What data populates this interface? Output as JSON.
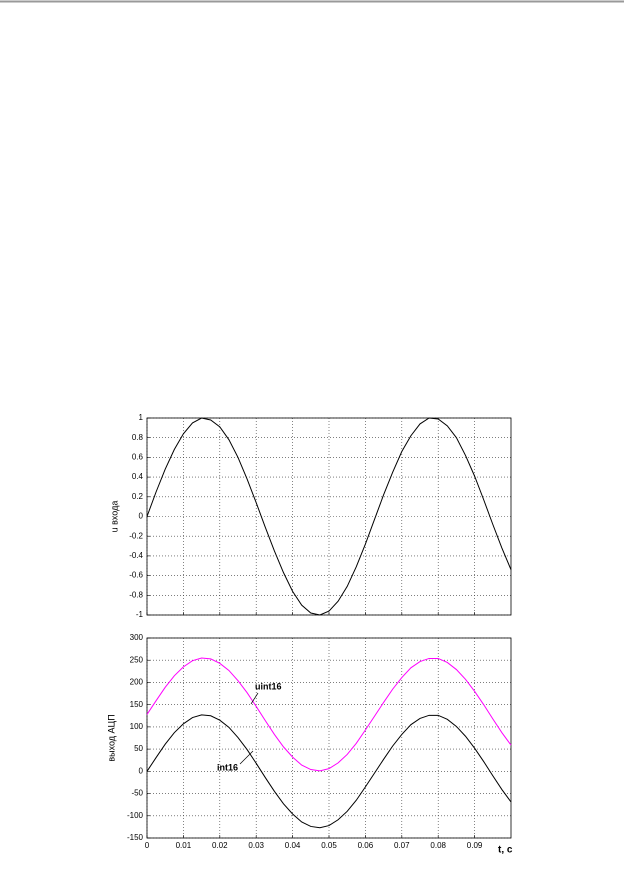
{
  "chart_data": [
    {
      "type": "line",
      "ylabel": "u входа",
      "x": [
        0,
        0.0025,
        0.005,
        0.0075,
        0.01,
        0.0125,
        0.015,
        0.0175,
        0.02,
        0.0225,
        0.025,
        0.0275,
        0.03,
        0.0325,
        0.035,
        0.0375,
        0.04,
        0.0425,
        0.045,
        0.0475,
        0.05,
        0.0525,
        0.055,
        0.0575,
        0.06,
        0.0625,
        0.065,
        0.0675,
        0.07,
        0.0725,
        0.075,
        0.0775,
        0.08,
        0.0825,
        0.085,
        0.0875,
        0.09,
        0.0925,
        0.095,
        0.0975,
        0.1
      ],
      "series": [
        {
          "color": "#000000",
          "values": [
            0,
            0.25,
            0.48,
            0.68,
            0.84,
            0.95,
            1,
            0.98,
            0.91,
            0.78,
            0.6,
            0.38,
            0.14,
            -0.11,
            -0.35,
            -0.57,
            -0.76,
            -0.9,
            -0.98,
            -1,
            -0.96,
            -0.86,
            -0.71,
            -0.51,
            -0.28,
            -0.03,
            0.22,
            0.45,
            0.66,
            0.82,
            0.94,
            1,
            0.99,
            0.92,
            0.8,
            0.62,
            0.41,
            0.17,
            -0.08,
            -0.32,
            -0.54
          ]
        }
      ],
      "xlim": [
        0,
        0.1
      ],
      "xticks": [
        0,
        0.01,
        0.02,
        0.03,
        0.04,
        0.05,
        0.06,
        0.07,
        0.08,
        0.09
      ],
      "ylim": [
        -1,
        1
      ],
      "yticks": [
        -1,
        -0.8,
        -0.6,
        -0.4,
        -0.2,
        0,
        0.2,
        0.4,
        0.6,
        0.8,
        1
      ],
      "grid": true
    },
    {
      "type": "line",
      "ylabel": "выход АЦП",
      "xlabel": "t, c",
      "x": [
        0,
        0.0025,
        0.005,
        0.0075,
        0.01,
        0.0125,
        0.015,
        0.0175,
        0.02,
        0.0225,
        0.025,
        0.0275,
        0.03,
        0.0325,
        0.035,
        0.0375,
        0.04,
        0.0425,
        0.045,
        0.0475,
        0.05,
        0.0525,
        0.055,
        0.0575,
        0.06,
        0.0625,
        0.065,
        0.0675,
        0.07,
        0.0725,
        0.075,
        0.0775,
        0.08,
        0.0825,
        0.085,
        0.0875,
        0.09,
        0.0925,
        0.095,
        0.0975,
        0.1
      ],
      "series": [
        {
          "name": "uint16",
          "color": "#ff00ff",
          "values": [
            128,
            159,
            189,
            215,
            235,
            249,
            255,
            253,
            243,
            227,
            204,
            177,
            146,
            114,
            83,
            55,
            32,
            14,
            4,
            1,
            6,
            19,
            38,
            63,
            93,
            124,
            155,
            185,
            211,
            233,
            247,
            254,
            254,
            245,
            229,
            207,
            180,
            150,
            118,
            87,
            59
          ]
        },
        {
          "name": "int16",
          "color": "#000000",
          "values": [
            0,
            31,
            61,
            87,
            107,
            121,
            127,
            125,
            115,
            99,
            76,
            49,
            18,
            -14,
            -45,
            -73,
            -96,
            -114,
            -124,
            -127,
            -122,
            -109,
            -90,
            -65,
            -35,
            -4,
            27,
            57,
            83,
            105,
            119,
            126,
            126,
            117,
            101,
            79,
            52,
            22,
            -10,
            -41,
            -69
          ]
        }
      ],
      "xlim": [
        0,
        0.1
      ],
      "xticks": [
        0,
        0.01,
        0.02,
        0.03,
        0.04,
        0.05,
        0.06,
        0.07,
        0.08,
        0.09
      ],
      "ylim": [
        -150,
        300
      ],
      "yticks": [
        -150,
        -100,
        -50,
        0,
        50,
        100,
        150,
        200,
        250,
        300
      ],
      "grid": true
    }
  ]
}
